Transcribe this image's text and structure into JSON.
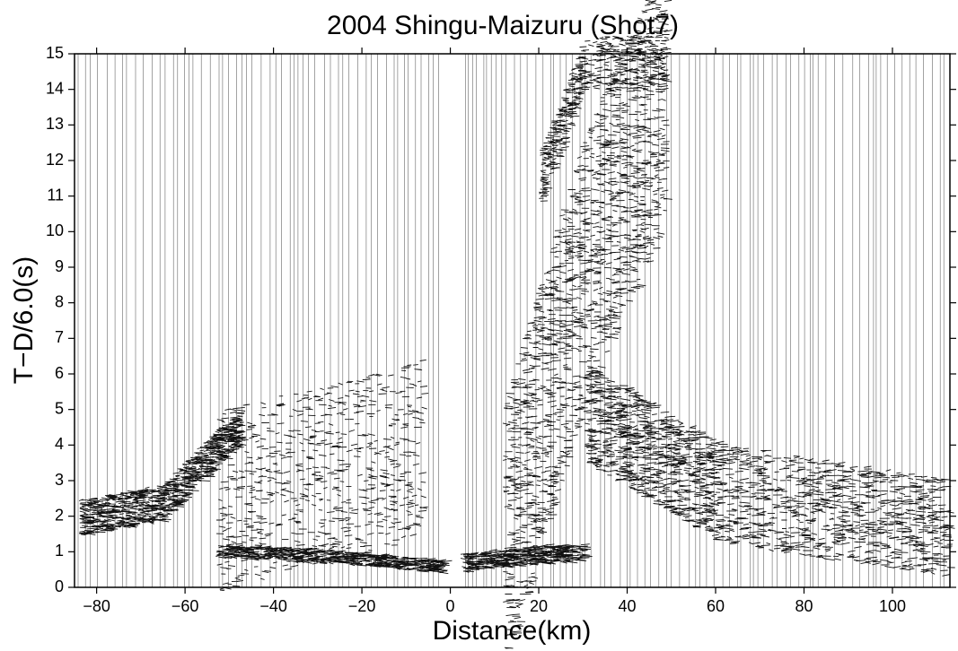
{
  "chart_data": {
    "type": "record-section",
    "title": "2004 Shingu-Maizuru (Shot7)",
    "x_label": "Distance(km)",
    "y_label": "T−D/6.0(s)",
    "xlim": [
      -85,
      113
    ],
    "ylim": [
      0,
      15
    ],
    "xticks": [
      {
        "value": -80,
        "label": "−80"
      },
      {
        "value": -60,
        "label": "−60"
      },
      {
        "value": -40,
        "label": "−40"
      },
      {
        "value": -20,
        "label": "−20"
      },
      0,
      20,
      40,
      60,
      80,
      100
    ],
    "yticks": [
      0,
      1,
      2,
      3,
      4,
      5,
      6,
      7,
      8,
      9,
      10,
      11,
      12,
      13,
      14,
      15
    ]
  }
}
